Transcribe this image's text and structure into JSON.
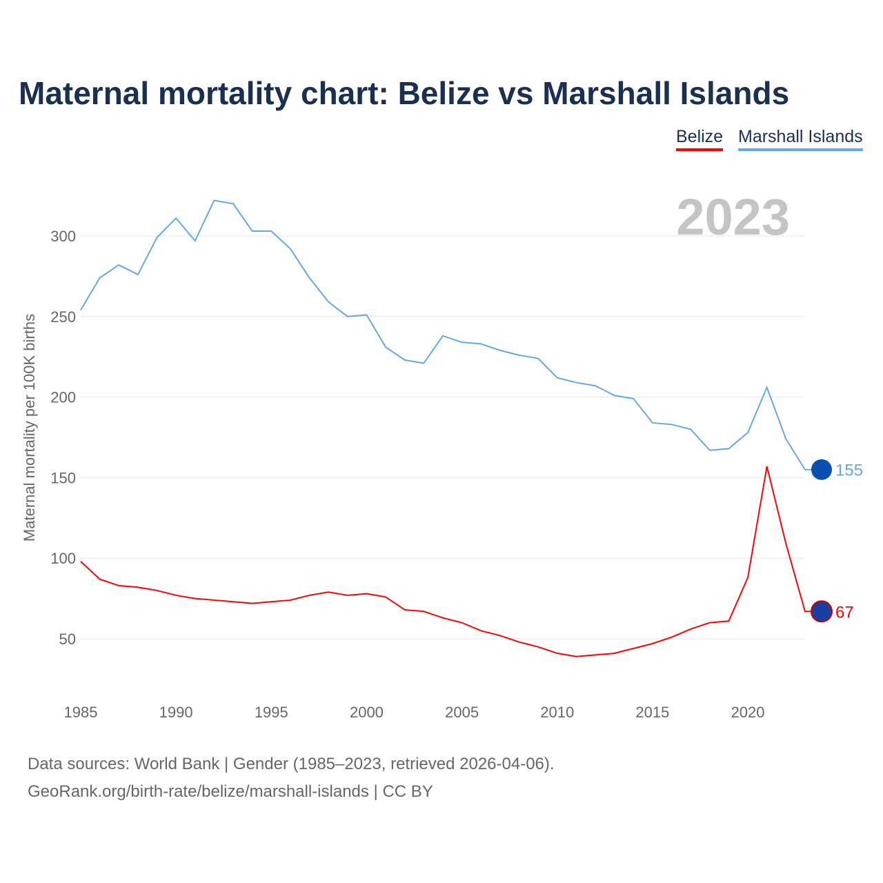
{
  "chart_data": {
    "type": "line",
    "title": "Maternal mortality chart: Belize vs Marshall Islands",
    "ylabel": "Maternal mortality per 100K births",
    "xlabel": "",
    "year_label": "2023",
    "xlim": [
      1985,
      2023
    ],
    "ylim": [
      20,
      340
    ],
    "yticks": [
      50,
      100,
      150,
      200,
      250,
      300
    ],
    "xticks": [
      1985,
      1990,
      1995,
      2000,
      2005,
      2010,
      2015,
      2020
    ],
    "grid": true,
    "legend_position": "top-right",
    "x": [
      1985,
      1986,
      1987,
      1988,
      1989,
      1990,
      1991,
      1992,
      1993,
      1994,
      1995,
      1996,
      1997,
      1998,
      1999,
      2000,
      2001,
      2002,
      2003,
      2004,
      2005,
      2006,
      2007,
      2008,
      2009,
      2010,
      2011,
      2012,
      2013,
      2014,
      2015,
      2016,
      2017,
      2018,
      2019,
      2020,
      2021,
      2022,
      2023
    ],
    "series": [
      {
        "name": "Belize",
        "color": "#ff0000",
        "end_label": "67",
        "values": [
          98,
          87,
          83,
          82,
          80,
          77,
          75,
          74,
          73,
          72,
          73,
          74,
          77,
          79,
          77,
          78,
          76,
          68,
          67,
          63,
          60,
          55,
          52,
          48,
          45,
          41,
          39,
          40,
          41,
          44,
          47,
          51,
          56,
          60,
          61,
          88,
          157,
          109,
          67
        ]
      },
      {
        "name": "Marshall Islands",
        "color": "#62a8e8",
        "end_label": "155",
        "values": [
          254,
          274,
          282,
          276,
          299,
          311,
          297,
          322,
          320,
          303,
          303,
          292,
          274,
          259,
          250,
          251,
          231,
          223,
          221,
          238,
          234,
          233,
          229,
          226,
          224,
          212,
          209,
          207,
          201,
          199,
          184,
          183,
          180,
          167,
          168,
          178,
          206,
          174,
          155
        ]
      }
    ]
  },
  "footer": {
    "line1": "Data sources: World Bank | Gender (1985–2023, retrieved 2026-04-06).",
    "line2": "GeoRank.org/birth-rate/belize/marshall-islands | CC BY"
  }
}
